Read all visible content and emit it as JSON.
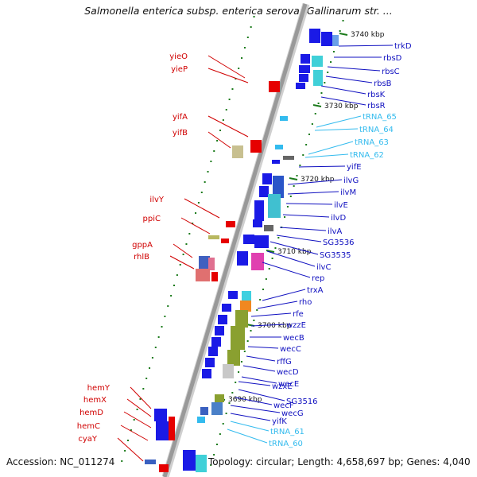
{
  "title": "Salmonella enterica subsp. enterica serovar Gallinarum str. ...",
  "accession": "Accession: NC_011274",
  "topology": "Topology: circular; Length: 4,658,697 bp; Genes: 4,040",
  "colors": {
    "backbone": "#999999",
    "forward_gene": "#1a1ae6",
    "reverse_gene": "#e60000",
    "label_forward": "#1010c0",
    "label_reverse": "#d00000",
    "label_trna": "#33bbee",
    "tick": "#1a7a1a"
  },
  "coordinate_labels": [
    "3740 kbp",
    "3730 kbp",
    "3720 kbp",
    "3710 kbp",
    "3700 kbp",
    "3690 kbp"
  ],
  "left_genes": [
    "yieO",
    "yieP",
    "yifA",
    "yifB",
    "ilvY",
    "ppiC",
    "gppA",
    "rhlB",
    "hemY",
    "hemX",
    "hemD",
    "hemC",
    "cyaY"
  ],
  "right_genes": [
    {
      "name": "trkD",
      "kind": "gene"
    },
    {
      "name": "rbsD",
      "kind": "gene"
    },
    {
      "name": "rbsC",
      "kind": "gene"
    },
    {
      "name": "rbsB",
      "kind": "gene"
    },
    {
      "name": "rbsK",
      "kind": "gene"
    },
    {
      "name": "rbsR",
      "kind": "gene"
    },
    {
      "name": "tRNA_65",
      "kind": "trna"
    },
    {
      "name": "tRNA_64",
      "kind": "trna"
    },
    {
      "name": "tRNA_63",
      "kind": "trna"
    },
    {
      "name": "tRNA_62",
      "kind": "trna"
    },
    {
      "name": "yifE",
      "kind": "gene"
    },
    {
      "name": "ilvG",
      "kind": "gene"
    },
    {
      "name": "ilvM",
      "kind": "gene"
    },
    {
      "name": "ilvE",
      "kind": "gene"
    },
    {
      "name": "ilvD",
      "kind": "gene"
    },
    {
      "name": "ilvA",
      "kind": "gene"
    },
    {
      "name": "SG3536",
      "kind": "gene"
    },
    {
      "name": "SG3535",
      "kind": "gene"
    },
    {
      "name": "ilvC",
      "kind": "gene"
    },
    {
      "name": "rep",
      "kind": "gene"
    },
    {
      "name": "trxA",
      "kind": "gene"
    },
    {
      "name": "rho",
      "kind": "gene"
    },
    {
      "name": "rfe",
      "kind": "gene"
    },
    {
      "name": "wzzE",
      "kind": "gene"
    },
    {
      "name": "wecB",
      "kind": "gene"
    },
    {
      "name": "wecC",
      "kind": "gene"
    },
    {
      "name": "rffG",
      "kind": "gene"
    },
    {
      "name": "wecD",
      "kind": "gene"
    },
    {
      "name": "wecE",
      "kind": "gene"
    },
    {
      "name": "wzxE",
      "kind": "gene"
    },
    {
      "name": "SG3516",
      "kind": "gene"
    },
    {
      "name": "wecF",
      "kind": "gene"
    },
    {
      "name": "wecG",
      "kind": "gene"
    },
    {
      "name": "yifK",
      "kind": "gene"
    },
    {
      "name": "tRNA_61",
      "kind": "trna"
    },
    {
      "name": "tRNA_60",
      "kind": "trna"
    }
  ]
}
